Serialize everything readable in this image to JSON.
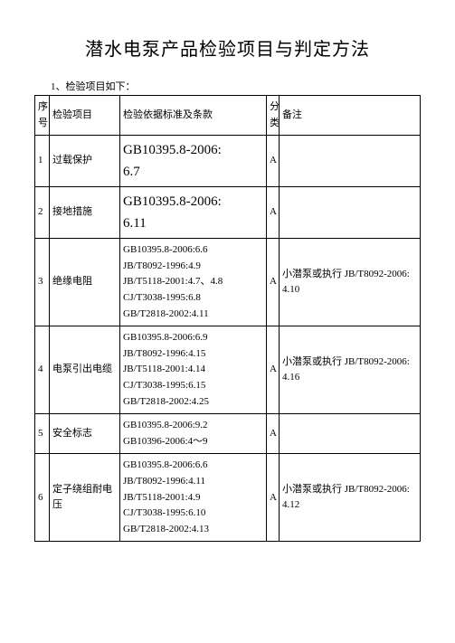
{
  "title": "潜水电泵产品检验项目与判定方法",
  "subtitle": "1、检验项目如下：",
  "headers": {
    "seq": "序号",
    "item": "检验项目",
    "std": "检验依据标准及条款",
    "cat": "分类",
    "note": "备注"
  },
  "rows": [
    {
      "seq": "1",
      "item": "过载保护",
      "std_lines": [
        "GB10395.8-2006:",
        "6.7"
      ],
      "std_big": true,
      "cat": "A",
      "note": ""
    },
    {
      "seq": "2",
      "item": "接地措施",
      "std_lines": [
        "GB10395.8-2006:",
        "6.11"
      ],
      "std_big": true,
      "cat": "A",
      "note": ""
    },
    {
      "seq": "3",
      "item": "绝缘电阻",
      "std_lines": [
        "GB10395.8-2006:6.6",
        "JB/T8092-1996:4.9",
        "JB/T5118-2001:4.7、4.8",
        "CJ/T3038-1995:6.8",
        "GB/T2818-2002:4.11"
      ],
      "std_big": false,
      "cat": "A",
      "note": "小潜泵或执行 JB/T8092-2006:4.10"
    },
    {
      "seq": "4",
      "item": "电泵引出电缆",
      "std_lines": [
        "GB10395.8-2006:6.9",
        "JB/T8092-1996:4.15",
        "JB/T5118-2001:4.14",
        "CJ/T3038-1995:6.15",
        "GB/T2818-2002:4.25"
      ],
      "std_big": false,
      "cat": "A",
      "note": "小潜泵或执行 JB/T8092-2006:4.16"
    },
    {
      "seq": "5",
      "item": "安全标志",
      "std_lines": [
        "GB10395.8-2006:9.2",
        "GB10396-2006:4～9"
      ],
      "std_big": false,
      "cat": "A",
      "note": ""
    },
    {
      "seq": "6",
      "item": "定子绕组耐电压",
      "std_lines": [
        "GB10395.8-2006:6.6",
        "JB/T8092-1996:4.11",
        "JB/T5118-2001:4.9",
        "CJ/T3038-1995:6.10",
        "GB/T2818-2002:4.13"
      ],
      "std_big": false,
      "cat": "A",
      "note": "小潜泵或执行 JB/T8092-2006:4.12"
    }
  ]
}
